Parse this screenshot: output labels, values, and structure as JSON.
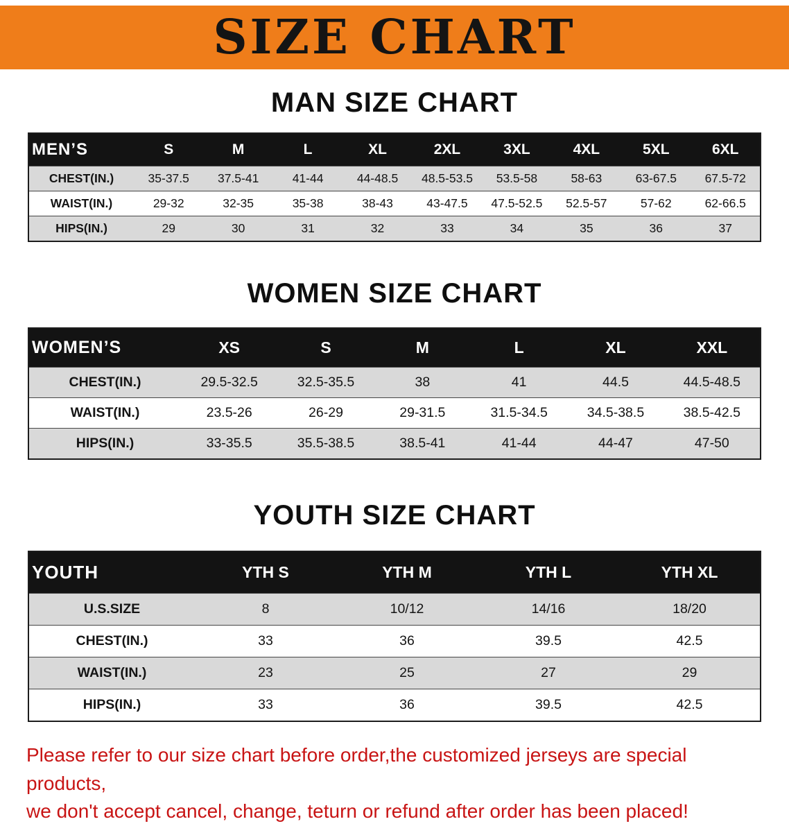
{
  "banner": {
    "title": "SIZE CHART",
    "bg_color": "#ef7d1a"
  },
  "sections": [
    {
      "id": "men",
      "heading": "MAN SIZE CHART",
      "header_label": "MEN’S",
      "columns": [
        "S",
        "M",
        "L",
        "XL",
        "2XL",
        "3XL",
        "4XL",
        "5XL",
        "6XL"
      ],
      "rows": [
        {
          "label": "CHEST(IN.)",
          "values": [
            "35-37.5",
            "37.5-41",
            "41-44",
            "44-48.5",
            "48.5-53.5",
            "53.5-58",
            "58-63",
            "63-67.5",
            "67.5-72"
          ]
        },
        {
          "label": "WAIST(IN.)",
          "values": [
            "29-32",
            "32-35",
            "35-38",
            "38-43",
            "43-47.5",
            "47.5-52.5",
            "52.5-57",
            "57-62",
            "62-66.5"
          ]
        },
        {
          "label": "HIPS(IN.)",
          "values": [
            "29",
            "30",
            "31",
            "32",
            "33",
            "34",
            "35",
            "36",
            "37"
          ]
        }
      ]
    },
    {
      "id": "women",
      "heading": "WOMEN SIZE CHART",
      "header_label": "WOMEN’S",
      "columns": [
        "XS",
        "S",
        "M",
        "L",
        "XL",
        "XXL"
      ],
      "rows": [
        {
          "label": "CHEST(IN.)",
          "values": [
            "29.5-32.5",
            "32.5-35.5",
            "38",
            "41",
            "44.5",
            "44.5-48.5"
          ]
        },
        {
          "label": "WAIST(IN.)",
          "values": [
            "23.5-26",
            "26-29",
            "29-31.5",
            "31.5-34.5",
            "34.5-38.5",
            "38.5-42.5"
          ]
        },
        {
          "label": "HIPS(IN.)",
          "values": [
            "33-35.5",
            "35.5-38.5",
            "38.5-41",
            "41-44",
            "44-47",
            "47-50"
          ]
        }
      ]
    },
    {
      "id": "youth",
      "heading": "YOUTH SIZE CHART",
      "header_label": "YOUTH",
      "columns": [
        "YTH S",
        "YTH M",
        "YTH L",
        "YTH XL"
      ],
      "rows": [
        {
          "label": "U.S.SIZE",
          "values": [
            "8",
            "10/12",
            "14/16",
            "18/20"
          ]
        },
        {
          "label": "CHEST(IN.)",
          "values": [
            "33",
            "36",
            "39.5",
            "42.5"
          ]
        },
        {
          "label": "WAIST(IN.)",
          "values": [
            "23",
            "25",
            "27",
            "29"
          ]
        },
        {
          "label": "HIPS(IN.)",
          "values": [
            "33",
            "36",
            "39.5",
            "42.5"
          ]
        }
      ]
    }
  ],
  "disclaimer": {
    "text_color": "#c81414",
    "lines": [
      "Please refer to our size chart before order,the customized jerseys are special products,",
      "we don't accept cancel, change, teturn or refund after order has been placed!"
    ]
  }
}
